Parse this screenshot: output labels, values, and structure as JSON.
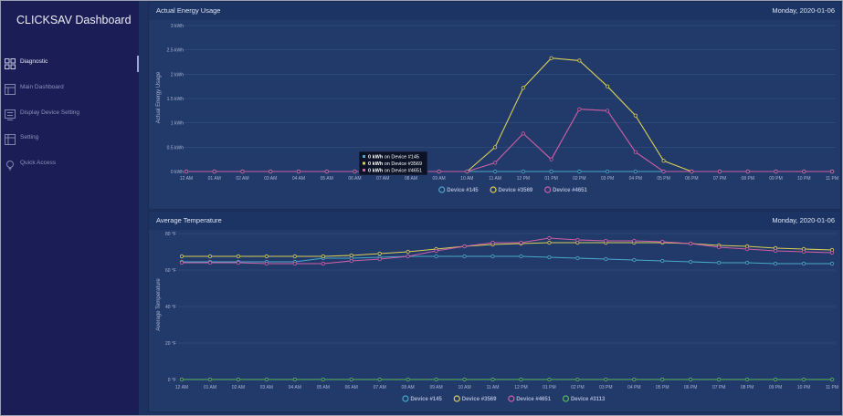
{
  "app": {
    "title": "CLICKSAV Dashboard"
  },
  "sidebar": {
    "items": [
      {
        "label": "Diagnostic",
        "icon": "grid-icon",
        "active": true
      },
      {
        "label": "Main Dashboard",
        "icon": "dashboard-icon",
        "active": false
      },
      {
        "label": "Display Device Setting",
        "icon": "display-settings-icon",
        "active": false
      },
      {
        "label": "Setting",
        "icon": "settings-icon",
        "active": false
      },
      {
        "label": "Quick Access",
        "icon": "lightbulb-icon",
        "active": false
      }
    ]
  },
  "colors": {
    "device_145": "#4aa8c8",
    "device_3569": "#d8cf58",
    "device_4651": "#cf5fa6",
    "device_3113": "#5bb760",
    "grid": "#33507e",
    "axis_text": "#aab4d2"
  },
  "energy": {
    "title": "Actual Energy Usage",
    "date": "Monday, 2020-01-06",
    "tooltip": [
      {
        "value": "0 kWh",
        "text": "on Device #145"
      },
      {
        "value": "0 kWh",
        "text": "on Device #3569"
      },
      {
        "value": "0 kWh",
        "text": "on Device #4651"
      }
    ],
    "chart_data": {
      "type": "line",
      "ylabel": "Actual Energy Usage",
      "ylim": [
        0,
        3
      ],
      "yticks": [
        "0 kWh",
        "0.5 kWh",
        "1 kWh",
        "1.5 kWh",
        "2 kWh",
        "2.5 kWh",
        "3 kWh"
      ],
      "ytick_values": [
        0,
        0.5,
        1,
        1.5,
        2,
        2.5,
        3
      ],
      "x": [
        "12 AM",
        "01 AM",
        "02 AM",
        "03 AM",
        "04 AM",
        "05 AM",
        "06 AM",
        "07 AM",
        "08 AM",
        "09 AM",
        "10 AM",
        "11 AM",
        "12 PM",
        "01 PM",
        "02 PM",
        "03 PM",
        "04 PM",
        "05 PM",
        "06 PM",
        "07 PM",
        "08 PM",
        "09 PM",
        "10 PM",
        "11 PM"
      ],
      "series": [
        {
          "name": "Device #145",
          "color": "#4aa8c8",
          "values": [
            0,
            0,
            0,
            0,
            0,
            0,
            0,
            0,
            0,
            0,
            0,
            0,
            0,
            0,
            0,
            0,
            0,
            0,
            0,
            0,
            0,
            0,
            0,
            0
          ]
        },
        {
          "name": "Device #3569",
          "color": "#d8cf58",
          "values": [
            0,
            0,
            0,
            0,
            0,
            0,
            0,
            0,
            0,
            0,
            0,
            0.5,
            1.72,
            2.33,
            2.28,
            1.75,
            1.15,
            0.22,
            0,
            0,
            0,
            0,
            0,
            0
          ]
        },
        {
          "name": "Device #4651",
          "color": "#cf5fa6",
          "values": [
            0,
            0,
            0,
            0,
            0,
            0,
            0,
            0,
            0,
            0,
            0,
            0.18,
            0.78,
            0.25,
            1.28,
            1.25,
            0.4,
            0,
            0,
            0,
            0,
            0,
            0,
            0
          ]
        }
      ]
    }
  },
  "temperature": {
    "title": "Average Temperature",
    "date": "Monday, 2020-01-06",
    "chart_data": {
      "type": "line",
      "ylabel": "Average Temperature",
      "ylim": [
        0,
        80
      ],
      "yticks": [
        "0 °F",
        "20 °F",
        "40 °F",
        "60 °F",
        "80 °F"
      ],
      "ytick_values": [
        0,
        20,
        40,
        60,
        80
      ],
      "x": [
        "12 AM",
        "01 AM",
        "02 AM",
        "03 AM",
        "04 AM",
        "05 AM",
        "06 AM",
        "07 AM",
        "08 AM",
        "09 AM",
        "10 AM",
        "11 AM",
        "12 PM",
        "01 PM",
        "02 PM",
        "03 PM",
        "04 PM",
        "05 PM",
        "06 PM",
        "07 PM",
        "08 PM",
        "09 PM",
        "10 PM",
        "11 PM"
      ],
      "series": [
        {
          "name": "Device #145",
          "color": "#4aa8c8",
          "values": [
            64.5,
            64.5,
            64.5,
            64.5,
            64.5,
            66.5,
            66.5,
            67,
            67.5,
            67.5,
            67.5,
            67.5,
            67.5,
            67,
            66.5,
            66,
            65.5,
            65,
            64.5,
            64,
            64,
            63.5,
            63.5,
            63.5
          ]
        },
        {
          "name": "Device #3569",
          "color": "#d8cf58",
          "values": [
            67.5,
            67.5,
            67.5,
            67.5,
            67.5,
            67.5,
            68,
            69,
            70,
            71.5,
            73,
            74,
            74.5,
            75,
            75,
            75,
            75,
            75,
            74.5,
            73.5,
            73,
            72,
            71.5,
            71
          ]
        },
        {
          "name": "Device #4651",
          "color": "#cf5fa6",
          "values": [
            64,
            64,
            64,
            63.5,
            63.5,
            63.5,
            65,
            66,
            67.5,
            70.5,
            73,
            75,
            75,
            77.5,
            76.5,
            76,
            76,
            75.5,
            74.5,
            72.5,
            71.5,
            70.5,
            70,
            69.5
          ]
        },
        {
          "name": "Device #3113",
          "color": "#5bb760",
          "values": [
            0,
            0,
            0,
            0,
            0,
            0,
            0,
            0,
            0,
            0,
            0,
            0,
            0,
            0,
            0,
            0,
            0,
            0,
            0,
            0,
            0,
            0,
            0,
            0
          ]
        }
      ]
    }
  }
}
